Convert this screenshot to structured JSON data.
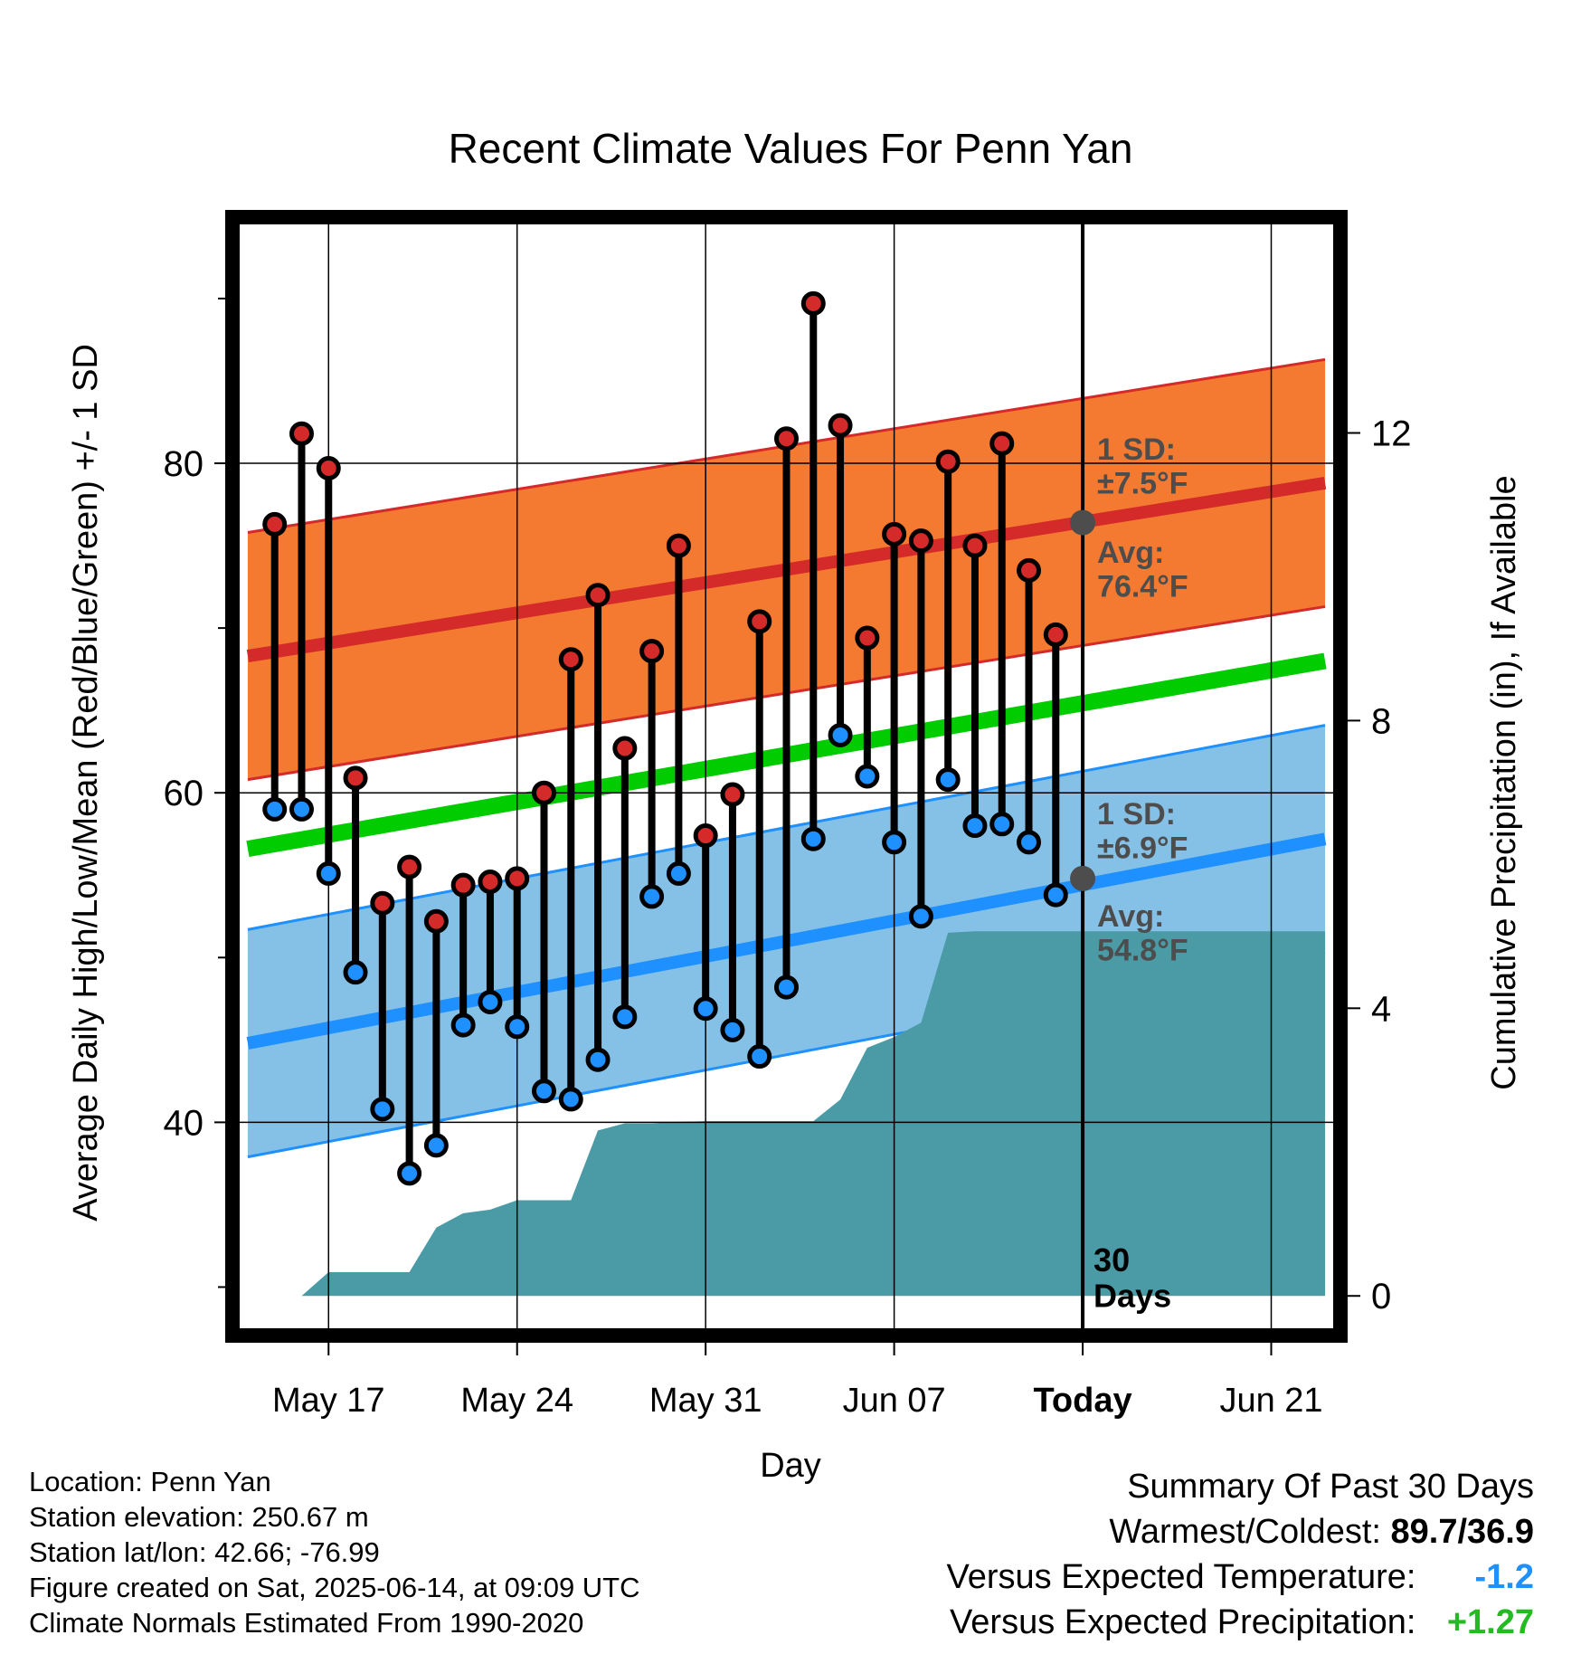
{
  "chart_data": {
    "type": "line",
    "title": "Recent Climate Values For Penn Yan",
    "xlabel": "Day",
    "ylabel": "Average Daily High/Low/Mean (Red/Blue/Green) +/- 1 SD",
    "y2label": "Cumulative Precipitation (in), If Available",
    "ylim": [
      27.5,
      94.5
    ],
    "y2lim": [
      -0.45,
      14.9
    ],
    "yticks": [
      "40",
      "60",
      "80"
    ],
    "y2ticks": [
      "0",
      "4",
      "8",
      "12"
    ],
    "xticks": [
      "May 17",
      "May 24",
      "May 31",
      "Jun 07",
      "Today",
      "Jun 21"
    ],
    "xtick_days": [
      3,
      10,
      17,
      24,
      31,
      38
    ],
    "xlim": [
      -0.3,
      40.3
    ],
    "today_day": 31,
    "days_label": [
      "30",
      "Days"
    ],
    "series": [
      {
        "name": "High",
        "color": "#d42a2a",
        "x": [
          1,
          2,
          3,
          4,
          5,
          6,
          7,
          8,
          9,
          10,
          11,
          12,
          13,
          14,
          15,
          16,
          17,
          18,
          19,
          20,
          21,
          22,
          23,
          24,
          25,
          26,
          27,
          28,
          29,
          30
        ],
        "values": [
          76.3,
          81.8,
          79.7,
          60.9,
          53.3,
          55.5,
          52.2,
          54.4,
          54.6,
          54.8,
          60.0,
          68.1,
          72.0,
          62.7,
          68.6,
          75.0,
          57.4,
          59.9,
          70.4,
          81.5,
          89.7,
          82.3,
          69.4,
          75.7,
          75.3,
          80.1,
          75.0,
          81.2,
          73.5,
          69.6
        ]
      },
      {
        "name": "Low",
        "color": "#1e90ff",
        "x": [
          1,
          2,
          3,
          4,
          5,
          6,
          7,
          8,
          9,
          10,
          11,
          12,
          13,
          14,
          15,
          16,
          17,
          18,
          19,
          20,
          21,
          22,
          23,
          24,
          25,
          26,
          27,
          28,
          29,
          30
        ],
        "values": [
          59.0,
          59.0,
          55.1,
          49.1,
          40.8,
          36.9,
          38.6,
          45.9,
          47.3,
          45.8,
          41.9,
          41.4,
          43.8,
          46.4,
          53.7,
          55.1,
          46.9,
          45.6,
          44.0,
          48.2,
          57.2,
          63.5,
          61.0,
          57.0,
          52.5,
          60.8,
          58.0,
          58.1,
          57.0,
          53.8
        ]
      },
      {
        "name": "Normal High",
        "color": "#d42a2a",
        "x": [
          0,
          40
        ],
        "values": [
          68.3,
          78.8
        ],
        "sd": 7.5
      },
      {
        "name": "Normal Low",
        "color": "#1e90ff",
        "x": [
          0,
          40
        ],
        "values": [
          44.8,
          57.2
        ],
        "sd": 6.9
      },
      {
        "name": "Normal Mean",
        "color": "#00cc00",
        "x": [
          0,
          40
        ],
        "values": [
          56.6,
          68.0
        ]
      },
      {
        "name": "Cumulative Precipitation",
        "color": "#4a9ba6",
        "x": [
          0,
          1,
          2,
          3,
          4,
          5,
          6,
          7,
          8,
          9,
          10,
          11,
          12,
          13,
          14,
          15,
          16,
          17,
          18,
          19,
          20,
          21,
          22,
          23,
          24,
          25,
          26,
          27,
          28,
          29,
          30,
          31,
          40
        ],
        "values": [
          0,
          0,
          0,
          0.33,
          0.33,
          0.33,
          0.33,
          0.95,
          1.15,
          1.2,
          1.33,
          1.33,
          1.33,
          2.3,
          2.4,
          2.4,
          2.42,
          2.43,
          2.43,
          2.43,
          2.43,
          2.43,
          2.73,
          3.45,
          3.6,
          3.8,
          5.05,
          5.07,
          5.07,
          5.07,
          5.07,
          5.07,
          5.07
        ]
      }
    ],
    "annotations": {
      "high_sd": [
        "1 SD:",
        "±7.5°F"
      ],
      "high_avg": [
        "Avg:",
        "76.4°F"
      ],
      "high_avg_value": 76.4,
      "low_sd": [
        "1 SD:",
        "±6.9°F"
      ],
      "low_avg": [
        "Avg:",
        "54.8°F"
      ],
      "low_avg_value": 54.8
    }
  },
  "footer": {
    "location": "Location: Penn Yan",
    "elevation": "Station elevation: 250.67 m",
    "latlon": "Station lat/lon: 42.66; -76.99",
    "created": "Figure created on Sat, 2025-06-14, at 09:09 UTC",
    "normals": "Climate Normals Estimated From 1990-2020"
  },
  "summary": {
    "title": "Summary Of Past 30 Days",
    "warmest_label": "Warmest/Coldest:",
    "warmest_value": "89.7/36.9",
    "temp_label": "Versus Expected Temperature:",
    "temp_value": "-1.2",
    "temp_color": "#1e90ff",
    "precip_label": "Versus Expected Precipitation:",
    "precip_value": "+1.27",
    "precip_color": "#22bb22"
  }
}
